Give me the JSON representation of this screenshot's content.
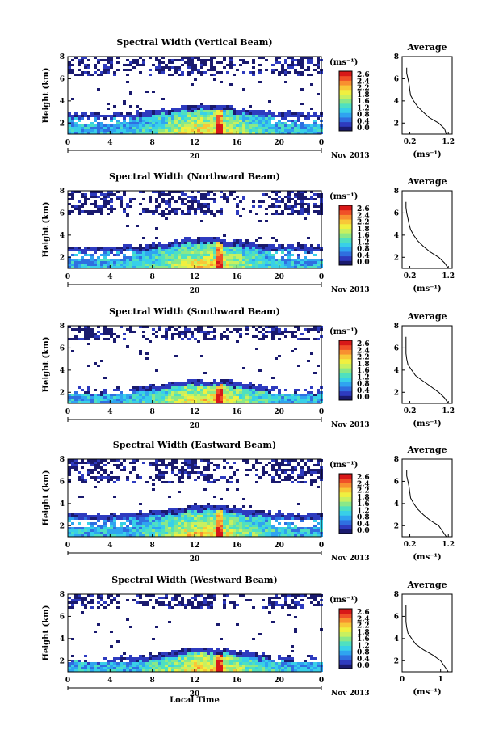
{
  "chart_data": {
    "type": "heatmap",
    "x_ticks": [
      "0",
      "4",
      "8",
      "12",
      "16",
      "20",
      "0"
    ],
    "date_label": "20",
    "month_label": "Nov 2013",
    "xlabel": "Local Time",
    "ylabel": "Height (km)",
    "y_ticks": [
      "2",
      "4",
      "6",
      "8"
    ],
    "ylim": [
      1,
      8
    ],
    "colorbar": {
      "unit": "(ms⁻¹)",
      "ticks": [
        "2.6",
        "2.4",
        "2.2",
        "1.8",
        "1.6",
        "1.2",
        "0.8",
        "0.4",
        "0.0"
      ],
      "range": [
        0,
        2.8
      ],
      "colors": [
        "#1a1a6e",
        "#2e3bbf",
        "#2f6fe0",
        "#2fa4f0",
        "#38d0e8",
        "#4fe0c0",
        "#8ae888",
        "#c8f060",
        "#f0f040",
        "#f8c838",
        "#f89030",
        "#f05028",
        "#d81818"
      ]
    },
    "average_panel": {
      "title": "Average",
      "xlabel": "(ms⁻¹)",
      "y_ticks": [
        "2",
        "4",
        "6",
        "8"
      ],
      "ylim": [
        1,
        8
      ],
      "xlim": [
        0,
        1.3
      ],
      "profile_height_km": [
        1,
        1.5,
        2,
        2.5,
        3,
        3.5,
        4,
        4.5,
        5,
        5.5,
        6,
        6.5,
        7
      ]
    },
    "panels": [
      {
        "title": "Spectral Width (Vertical Beam)",
        "cb_ticks": [
          "2.6",
          "2.4",
          "2.2",
          "1.8",
          "1.6",
          "1.2",
          "0.8",
          "0.4",
          "0.0"
        ],
        "avg_x_ticks": [
          "0.2",
          "1.2"
        ],
        "avg_profile": [
          1.15,
          1.1,
          0.95,
          0.7,
          0.55,
          0.4,
          0.3,
          0.22,
          0.2,
          0.18,
          0.15,
          0.12,
          0.12
        ],
        "upper_cloud_top_km": 8.0,
        "upper_cloud_bottom_km": 6.3,
        "lower_layer_top_km": 3.5
      },
      {
        "title": "Spectral Width (Northward Beam)",
        "cb_ticks": [
          "2.6",
          "2.4",
          "2.2",
          "1.8",
          "1.6",
          "1.2",
          "0.8",
          "0.4",
          "0.0"
        ],
        "avg_x_ticks": [
          "0.2",
          "1.2"
        ],
        "avg_profile": [
          1.2,
          1.1,
          0.95,
          0.72,
          0.55,
          0.4,
          0.3,
          0.22,
          0.18,
          0.15,
          0.12,
          0.1,
          0.1
        ],
        "upper_cloud_top_km": 8.0,
        "upper_cloud_bottom_km": 6.0,
        "lower_layer_top_km": 3.6
      },
      {
        "title": "Spectral Width (Southward Beam)",
        "cb_ticks": [
          "2.6",
          "2.4",
          "2.2",
          "1.8",
          "1.6",
          "1.2",
          "0.8",
          "0.4",
          "0.0"
        ],
        "avg_x_ticks": [
          "0.2",
          "1.2"
        ],
        "avg_profile": [
          1.2,
          1.1,
          0.95,
          0.75,
          0.55,
          0.35,
          0.25,
          0.15,
          0.12,
          0.1,
          0.1,
          0.1,
          0.1
        ],
        "upper_cloud_top_km": 8.0,
        "upper_cloud_bottom_km": 6.8,
        "lower_layer_top_km": 3.0
      },
      {
        "title": "Spectral Width (Eastward Beam)",
        "cb_ticks": [
          "2.6",
          "2.4",
          "2.2",
          "1.8",
          "1.6",
          "1.2",
          "0.8",
          "0.4",
          "0.0"
        ],
        "avg_x_ticks": [
          "0.2",
          "1.2"
        ],
        "avg_profile": [
          1.15,
          1.05,
          0.95,
          0.72,
          0.55,
          0.4,
          0.3,
          0.22,
          0.2,
          0.18,
          0.15,
          0.12,
          0.12
        ],
        "upper_cloud_top_km": 8.0,
        "upper_cloud_bottom_km": 6.0,
        "lower_layer_top_km": 3.7
      },
      {
        "title": "Spectral Width (Westward Beam)",
        "cb_ticks": [
          "2.6",
          "2.4",
          "2.2",
          "1.8",
          "1.6",
          "1.2",
          "0.8",
          "0.4",
          "0.0"
        ],
        "avg_x_ticks": [
          "0",
          "1"
        ],
        "avg_profile": [
          1.2,
          1.1,
          1.0,
          0.8,
          0.55,
          0.35,
          0.25,
          0.15,
          0.12,
          0.1,
          0.1,
          0.1,
          0.1
        ],
        "upper_cloud_top_km": 8.0,
        "upper_cloud_bottom_km": 6.8,
        "lower_layer_top_km": 3.0
      }
    ]
  }
}
